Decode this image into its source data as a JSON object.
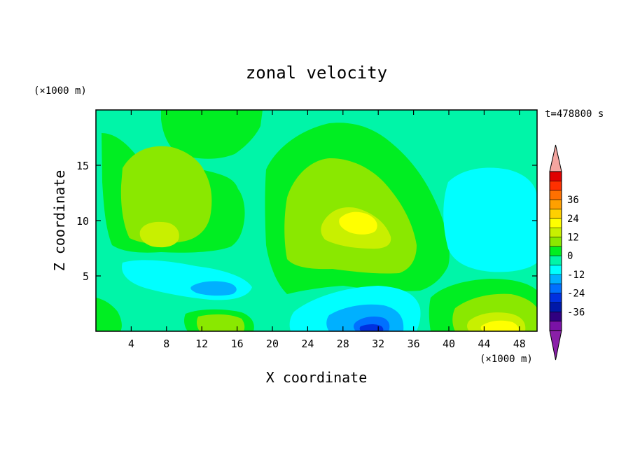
{
  "chart_data": {
    "type": "heatmap",
    "title": "zonal velocity",
    "xlabel": "X coordinate",
    "ylabel": "Z coordinate",
    "x_unit": "(×1000 m)",
    "y_unit": "(×1000 m)",
    "time_label": "t=478800 s",
    "xlim": [
      0,
      50
    ],
    "ylim": [
      0,
      20
    ],
    "x_ticks": [
      4,
      8,
      12,
      16,
      20,
      24,
      28,
      32,
      36,
      40,
      44,
      48
    ],
    "y_ticks": [
      5,
      10,
      15
    ],
    "colorbar": {
      "ticks": [
        36,
        24,
        12,
        0,
        -12,
        -24,
        -36
      ],
      "levels": [
        {
          "color": "#7a12a6"
        },
        {
          "color": "#300080"
        },
        {
          "color": "#0018a8"
        },
        {
          "color": "#0030e0"
        },
        {
          "color": "#0070ff"
        },
        {
          "color": "#00b0ff"
        },
        {
          "color": "#00ffff"
        },
        {
          "color": "#00f5a8"
        },
        {
          "color": "#00ee22"
        },
        {
          "color": "#8ae800"
        },
        {
          "color": "#c8f000"
        },
        {
          "color": "#ffff00"
        },
        {
          "color": "#ffd000"
        },
        {
          "color": "#ffa000"
        },
        {
          "color": "#ff7000"
        },
        {
          "color": "#ff3000"
        },
        {
          "color": "#e00000"
        }
      ],
      "under_color": "#8a1fa8",
      "over_color": "#f4a5a0"
    },
    "features": [
      {
        "x": 25,
        "y": 10,
        "value": 0
      },
      {
        "x": 27,
        "y": 12,
        "value": 6
      },
      {
        "x": 8,
        "y": 13,
        "value": 6
      },
      {
        "x": 30,
        "y": 9.5,
        "value": 12
      },
      {
        "x": 45,
        "y": 2,
        "value": 12
      },
      {
        "x": 31,
        "y": 1,
        "value": -18
      },
      {
        "x": 44,
        "y": 11,
        "value": -6
      },
      {
        "x": 14,
        "y": 4,
        "value": -6
      }
    ]
  }
}
